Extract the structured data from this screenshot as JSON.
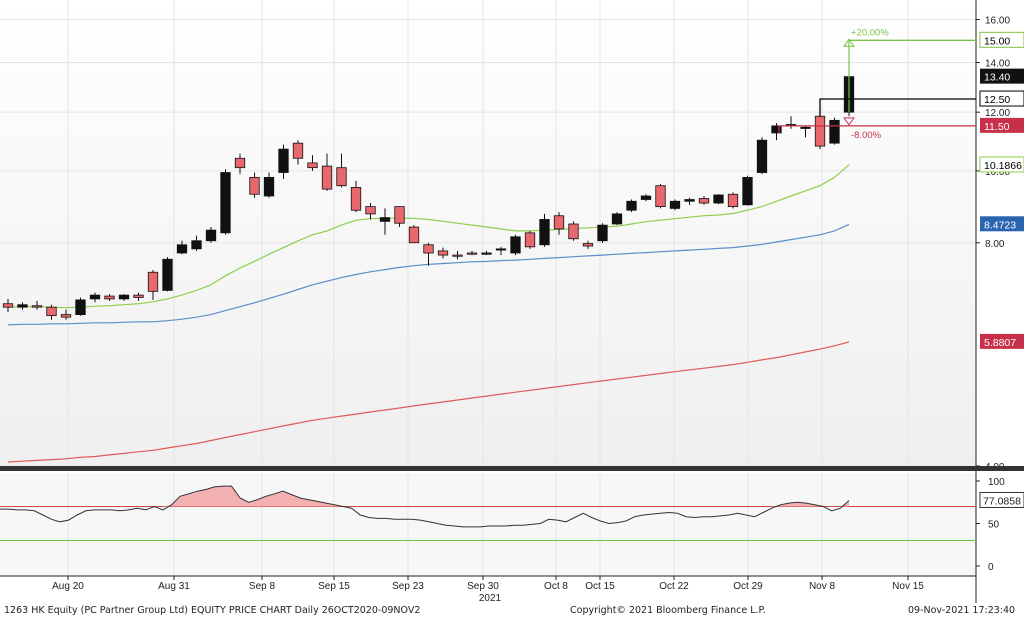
{
  "chart_data": {
    "type": "candlestick",
    "price_axis": {
      "min": 4,
      "max": 17,
      "scale": "log",
      "ticks": [
        "16.00",
        "14.00",
        "12.00",
        "10.00",
        "8.00",
        "4.00"
      ]
    },
    "x_labels": [
      "Aug 20",
      "Aug 31",
      "Sep 8",
      "Sep 15",
      "Sep 23",
      "Sep 30",
      "Oct 8",
      "Oct 15",
      "Oct 22",
      "Oct 29",
      "Nov 8",
      "Nov 15"
    ],
    "year_label": "2021",
    "candles": [
      {
        "o": 6.62,
        "h": 6.72,
        "l": 6.45,
        "c": 6.55
      },
      {
        "o": 6.55,
        "h": 6.65,
        "l": 6.5,
        "c": 6.6
      },
      {
        "o": 6.58,
        "h": 6.68,
        "l": 6.5,
        "c": 6.55
      },
      {
        "o": 6.55,
        "h": 6.6,
        "l": 6.3,
        "c": 6.38
      },
      {
        "o": 6.4,
        "h": 6.5,
        "l": 6.3,
        "c": 6.35
      },
      {
        "o": 6.4,
        "h": 6.75,
        "l": 6.38,
        "c": 6.7
      },
      {
        "o": 6.72,
        "h": 6.85,
        "l": 6.65,
        "c": 6.8
      },
      {
        "o": 6.78,
        "h": 6.82,
        "l": 6.68,
        "c": 6.72
      },
      {
        "o": 6.72,
        "h": 6.82,
        "l": 6.68,
        "c": 6.8
      },
      {
        "o": 6.8,
        "h": 6.85,
        "l": 6.68,
        "c": 6.75
      },
      {
        "o": 7.3,
        "h": 7.35,
        "l": 6.7,
        "c": 6.88
      },
      {
        "o": 6.9,
        "h": 7.65,
        "l": 6.88,
        "c": 7.6
      },
      {
        "o": 7.75,
        "h": 8.05,
        "l": 7.72,
        "c": 7.95
      },
      {
        "o": 7.85,
        "h": 8.18,
        "l": 7.8,
        "c": 8.05
      },
      {
        "o": 8.05,
        "h": 8.4,
        "l": 8.0,
        "c": 8.32
      },
      {
        "o": 8.25,
        "h": 10.05,
        "l": 8.2,
        "c": 9.95
      },
      {
        "o": 10.4,
        "h": 10.55,
        "l": 9.9,
        "c": 10.1
      },
      {
        "o": 9.8,
        "h": 9.95,
        "l": 9.2,
        "c": 9.3
      },
      {
        "o": 9.25,
        "h": 9.95,
        "l": 9.2,
        "c": 9.8
      },
      {
        "o": 9.95,
        "h": 10.85,
        "l": 9.75,
        "c": 10.7
      },
      {
        "o": 10.9,
        "h": 11.0,
        "l": 10.2,
        "c": 10.4
      },
      {
        "o": 10.25,
        "h": 10.5,
        "l": 10.0,
        "c": 10.1
      },
      {
        "o": 10.15,
        "h": 10.55,
        "l": 9.4,
        "c": 9.45
      },
      {
        "o": 10.1,
        "h": 10.55,
        "l": 9.5,
        "c": 9.55
      },
      {
        "o": 9.5,
        "h": 9.7,
        "l": 8.8,
        "c": 8.85
      },
      {
        "o": 8.95,
        "h": 9.05,
        "l": 8.6,
        "c": 8.75
      },
      {
        "o": 8.55,
        "h": 8.9,
        "l": 8.2,
        "c": 8.65
      },
      {
        "o": 8.95,
        "h": 8.95,
        "l": 8.4,
        "c": 8.5
      },
      {
        "o": 8.4,
        "h": 8.45,
        "l": 8.0,
        "c": 8.0
      },
      {
        "o": 7.95,
        "h": 8.0,
        "l": 7.45,
        "c": 7.75
      },
      {
        "o": 7.8,
        "h": 7.88,
        "l": 7.62,
        "c": 7.7
      },
      {
        "o": 7.7,
        "h": 7.8,
        "l": 7.6,
        "c": 7.68
      },
      {
        "o": 7.75,
        "h": 7.8,
        "l": 7.7,
        "c": 7.72
      },
      {
        "o": 7.72,
        "h": 7.8,
        "l": 7.7,
        "c": 7.75
      },
      {
        "o": 7.85,
        "h": 7.9,
        "l": 7.7,
        "c": 7.85
      },
      {
        "o": 7.75,
        "h": 8.2,
        "l": 7.7,
        "c": 8.15
      },
      {
        "o": 8.25,
        "h": 8.3,
        "l": 7.85,
        "c": 7.9
      },
      {
        "o": 7.95,
        "h": 8.75,
        "l": 7.9,
        "c": 8.6
      },
      {
        "o": 8.7,
        "h": 8.8,
        "l": 8.2,
        "c": 8.35
      },
      {
        "o": 8.48,
        "h": 8.55,
        "l": 8.05,
        "c": 8.1
      },
      {
        "o": 7.98,
        "h": 8.05,
        "l": 7.85,
        "c": 7.92
      },
      {
        "o": 8.05,
        "h": 8.5,
        "l": 8.0,
        "c": 8.45
      },
      {
        "o": 8.48,
        "h": 8.8,
        "l": 8.45,
        "c": 8.75
      },
      {
        "o": 8.85,
        "h": 9.15,
        "l": 8.8,
        "c": 9.1
      },
      {
        "o": 9.15,
        "h": 9.3,
        "l": 9.1,
        "c": 9.25
      },
      {
        "o": 9.55,
        "h": 9.6,
        "l": 8.9,
        "c": 8.95
      },
      {
        "o": 8.9,
        "h": 9.15,
        "l": 8.85,
        "c": 9.1
      },
      {
        "o": 9.1,
        "h": 9.2,
        "l": 9.0,
        "c": 9.15
      },
      {
        "o": 9.18,
        "h": 9.25,
        "l": 9.0,
        "c": 9.05
      },
      {
        "o": 9.05,
        "h": 9.3,
        "l": 9.02,
        "c": 9.28
      },
      {
        "o": 9.3,
        "h": 9.35,
        "l": 8.9,
        "c": 8.95
      },
      {
        "o": 9.0,
        "h": 9.85,
        "l": 8.98,
        "c": 9.8
      },
      {
        "o": 9.95,
        "h": 11.1,
        "l": 9.9,
        "c": 11.0
      },
      {
        "o": 11.25,
        "h": 11.6,
        "l": 11.0,
        "c": 11.5
      },
      {
        "o": 11.5,
        "h": 11.85,
        "l": 11.4,
        "c": 11.55
      },
      {
        "o": 11.45,
        "h": 11.5,
        "l": 11.1,
        "c": 11.45
      },
      {
        "o": 11.85,
        "h": 11.9,
        "l": 10.7,
        "c": 10.8
      },
      {
        "o": 10.9,
        "h": 11.8,
        "l": 10.85,
        "c": 11.7
      },
      {
        "o": 12.0,
        "h": 14.95,
        "l": 11.85,
        "c": 13.4
      }
    ],
    "moving_averages": [
      {
        "color": "#8ecf4a",
        "label": "10.1866",
        "values": [
          6.55,
          6.56,
          6.56,
          6.55,
          6.54,
          6.55,
          6.57,
          6.58,
          6.6,
          6.62,
          6.66,
          6.72,
          6.8,
          6.9,
          7.02,
          7.22,
          7.4,
          7.55,
          7.72,
          7.88,
          8.05,
          8.2,
          8.3,
          8.45,
          8.58,
          8.62,
          8.63,
          8.64,
          8.63,
          8.6,
          8.55,
          8.5,
          8.45,
          8.4,
          8.35,
          8.3,
          8.3,
          8.32,
          8.34,
          8.36,
          8.38,
          8.4,
          8.42,
          8.48,
          8.54,
          8.58,
          8.62,
          8.66,
          8.7,
          8.72,
          8.76,
          8.85,
          8.95,
          9.1,
          9.25,
          9.4,
          9.55,
          9.8,
          10.19
        ]
      },
      {
        "color": "#5b8fc9",
        "label": "8.4723",
        "values": [
          6.2,
          6.21,
          6.21,
          6.22,
          6.22,
          6.23,
          6.24,
          6.24,
          6.25,
          6.26,
          6.26,
          6.28,
          6.31,
          6.35,
          6.4,
          6.48,
          6.56,
          6.64,
          6.73,
          6.82,
          6.92,
          7.02,
          7.1,
          7.18,
          7.25,
          7.31,
          7.36,
          7.41,
          7.45,
          7.48,
          7.5,
          7.52,
          7.54,
          7.55,
          7.57,
          7.58,
          7.6,
          7.62,
          7.64,
          7.66,
          7.68,
          7.7,
          7.72,
          7.74,
          7.76,
          7.78,
          7.8,
          7.82,
          7.84,
          7.86,
          7.88,
          7.92,
          7.96,
          8.02,
          8.08,
          8.14,
          8.2,
          8.3,
          8.47
        ]
      },
      {
        "color": "#e05a5a",
        "label": "5.8807",
        "values": [
          4.05,
          4.06,
          4.07,
          4.08,
          4.09,
          4.11,
          4.12,
          4.14,
          4.16,
          4.18,
          4.2,
          4.23,
          4.26,
          4.29,
          4.33,
          4.37,
          4.41,
          4.45,
          4.49,
          4.53,
          4.57,
          4.61,
          4.64,
          4.67,
          4.7,
          4.73,
          4.76,
          4.79,
          4.82,
          4.85,
          4.88,
          4.91,
          4.94,
          4.97,
          5.0,
          5.03,
          5.06,
          5.09,
          5.12,
          5.15,
          5.18,
          5.21,
          5.24,
          5.27,
          5.3,
          5.33,
          5.36,
          5.39,
          5.42,
          5.45,
          5.48,
          5.52,
          5.56,
          5.6,
          5.65,
          5.7,
          5.75,
          5.81,
          5.88
        ]
      }
    ],
    "levels": [
      {
        "price": 15.0,
        "label": "15.00",
        "annotation": "+20.00%",
        "color": "#7cc242"
      },
      {
        "price": 12.5,
        "label": "12.50",
        "annotation": "",
        "color": "#000000"
      },
      {
        "price": 11.5,
        "label": "11.50",
        "annotation": "-8.00%",
        "color": "#c8304a"
      }
    ],
    "last_price_label": "13.40",
    "rsi": {
      "axis_ticks": [
        "100",
        "50",
        "0"
      ],
      "overbought": 70,
      "oversold": 30,
      "last_label": "77.0858",
      "values": [
        67,
        67,
        66,
        66,
        65,
        60,
        55,
        52,
        54,
        60,
        65,
        66,
        66,
        66,
        65,
        66,
        68,
        66,
        70,
        66,
        72,
        82,
        85,
        88,
        90,
        93,
        94,
        94,
        80,
        75,
        78,
        82,
        85,
        88,
        84,
        80,
        78,
        76,
        74,
        72,
        70,
        68,
        60,
        57,
        56,
        56,
        55,
        55,
        55,
        54,
        52,
        50,
        48,
        47,
        46,
        46,
        46,
        47,
        47,
        47,
        48,
        48,
        49,
        50,
        55,
        54,
        52,
        57,
        62,
        57,
        53,
        50,
        51,
        53,
        58,
        60,
        61,
        62,
        63,
        62,
        58,
        57,
        58,
        58,
        59,
        60,
        62,
        60,
        58,
        63,
        68,
        72,
        74,
        75,
        74,
        72,
        70,
        65,
        68,
        77
      ]
    }
  },
  "footer": {
    "left": "1263 HK Equity (PC Partner Group Ltd) EQUITY PRICE CHART  Daily 26OCT2020-09NOV2",
    "center": "Copyright© 2021 Bloomberg Finance L.P.",
    "right": "09-Nov-2021 17:23:40"
  },
  "colors": {
    "up": "#111111",
    "down": "#e8686e",
    "grid": "#e4e4e4",
    "axis_bg": "#ffffff"
  }
}
